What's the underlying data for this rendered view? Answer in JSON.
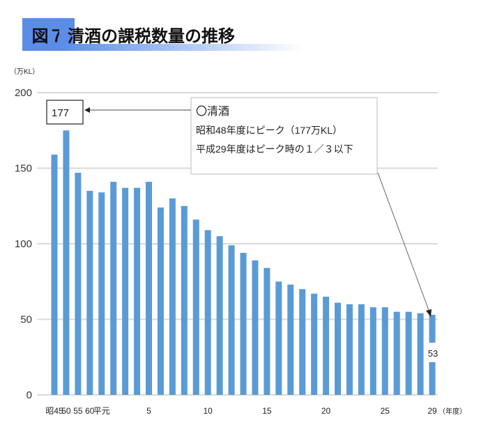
{
  "header": {
    "figure_label": "図７",
    "title": "清酒の課税数量の推移"
  },
  "chart_data": {
    "type": "bar",
    "title": "清酒の課税数量の推移",
    "ylabel": "（万KL）",
    "xlabel": "（年度）",
    "ylim": [
      0,
      200
    ],
    "yticks": [
      0,
      50,
      100,
      150,
      200
    ],
    "grid": true,
    "color": "#5b9bd5",
    "categories": [
      "昭45",
      "50",
      "55",
      "60",
      "平元",
      "2",
      "3",
      "4",
      "5",
      "6",
      "7",
      "8",
      "9",
      "10",
      "11",
      "12",
      "13",
      "14",
      "15",
      "16",
      "17",
      "18",
      "19",
      "20",
      "21",
      "22",
      "23",
      "24",
      "25",
      "26",
      "27",
      "28",
      "29"
    ],
    "tick_labels": {
      "0": "昭45",
      "1": "50",
      "2": "55",
      "3": "60",
      "4": "平元",
      "8": "5",
      "13": "10",
      "18": "15",
      "23": "20",
      "28": "25",
      "32": "29"
    },
    "values": [
      159,
      175,
      147,
      135,
      134,
      141,
      137,
      137,
      141,
      124,
      130,
      125,
      116,
      109,
      105,
      99,
      94,
      89,
      84,
      75,
      73,
      70,
      67,
      65,
      61,
      60,
      60,
      58,
      58,
      55,
      55,
      54,
      53
    ],
    "annotations": {
      "peak_label": "177",
      "last_label": "53",
      "callout_lines": [
        "〇清酒",
        "昭和48年度にピーク（177万KL）",
        "平成29年度はピーク時の１／３以下"
      ]
    }
  }
}
